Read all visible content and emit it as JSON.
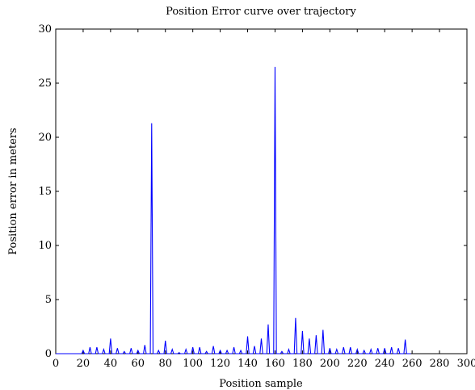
{
  "chart_data": {
    "type": "line",
    "title": "Position Error curve over trajectory",
    "xlabel": "Position sample",
    "ylabel": "Position error in meters",
    "xlim": [
      0,
      300
    ],
    "ylim": [
      0,
      30
    ],
    "xticks": [
      0,
      20,
      40,
      60,
      80,
      100,
      120,
      140,
      160,
      180,
      200,
      220,
      240,
      260,
      280,
      300
    ],
    "yticks": [
      0,
      5,
      10,
      15,
      20,
      25,
      30
    ],
    "grid": false,
    "series": [
      {
        "color": "#0000ff",
        "x": [
          0,
          19,
          20,
          21,
          24,
          25,
          26,
          29,
          30,
          31,
          34,
          35,
          36,
          39,
          40,
          41,
          44,
          45,
          46,
          49,
          50,
          51,
          54,
          55,
          56,
          59,
          60,
          61,
          64,
          65,
          66,
          69,
          70,
          71,
          74,
          75,
          76,
          79,
          80,
          81,
          84,
          85,
          86,
          89,
          90,
          91,
          94,
          95,
          96,
          99,
          100,
          101,
          104,
          105,
          106,
          109,
          110,
          111,
          114,
          115,
          116,
          119,
          120,
          121,
          124,
          125,
          126,
          129,
          130,
          131,
          134,
          135,
          136,
          139,
          140,
          141,
          144,
          145,
          146,
          149,
          150,
          151,
          154,
          155,
          156,
          159,
          160,
          161,
          164,
          165,
          166,
          169,
          170,
          171,
          174,
          175,
          176,
          179,
          180,
          181,
          184,
          185,
          186,
          189,
          190,
          191,
          194,
          195,
          196,
          199,
          200,
          201,
          204,
          205,
          206,
          209,
          210,
          211,
          214,
          215,
          216,
          219,
          220,
          221,
          224,
          225,
          226,
          229,
          230,
          231,
          234,
          235,
          236,
          239,
          240,
          241,
          244,
          245,
          246,
          249,
          250,
          251,
          254,
          255,
          256,
          259
        ],
        "y": [
          0,
          0,
          0.3,
          0,
          0,
          0.6,
          0,
          0,
          0.6,
          0,
          0,
          0.4,
          0,
          0,
          1.4,
          0,
          0,
          0.5,
          0,
          0,
          0.2,
          0,
          0,
          0.5,
          0,
          0,
          0.3,
          0,
          0,
          0.8,
          0,
          0,
          21.3,
          0,
          0,
          0.3,
          0,
          0,
          1.2,
          0,
          0,
          0.4,
          0,
          0,
          0.1,
          0,
          0,
          0.4,
          0,
          0,
          0.6,
          0,
          0,
          0.6,
          0,
          0,
          0.2,
          0,
          0,
          0.7,
          0,
          0,
          0.3,
          0,
          0,
          0.3,
          0,
          0,
          0.6,
          0,
          0,
          0.3,
          0,
          0,
          1.6,
          0,
          0,
          0.7,
          0,
          0,
          1.4,
          0,
          0,
          2.7,
          0,
          0,
          26.5,
          0,
          0,
          0.2,
          0,
          0,
          0.4,
          0,
          0,
          3.3,
          0,
          0,
          2.1,
          0,
          0,
          1.4,
          0,
          0,
          1.7,
          0,
          0,
          2.2,
          0,
          0,
          0.5,
          0,
          0,
          0.4,
          0,
          0,
          0.6,
          0,
          0,
          0.6,
          0,
          0,
          0.4,
          0,
          0,
          0.3,
          0,
          0,
          0.4,
          0,
          0,
          0.5,
          0,
          0,
          0.5,
          0,
          0,
          0.6,
          0,
          0,
          0.5,
          0,
          0,
          1.3,
          0,
          0
        ]
      }
    ]
  }
}
